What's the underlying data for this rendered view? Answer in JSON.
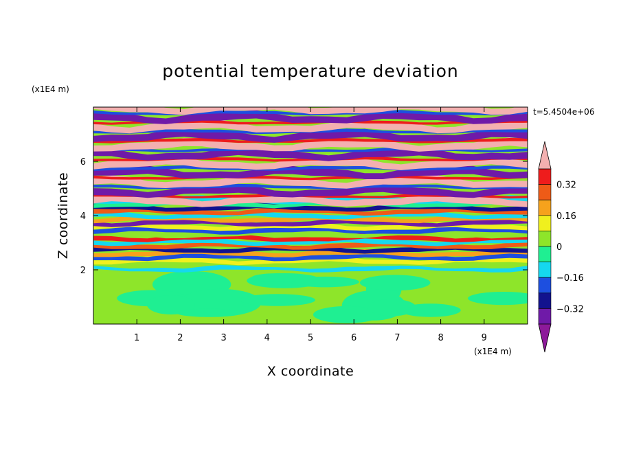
{
  "chart_data": {
    "type": "heatmap",
    "title": "potential temperature deviation",
    "xlabel": "X coordinate",
    "ylabel": "Z coordinate",
    "x_unit": "(x1E4 m)",
    "y_unit": "(x1E4 m)",
    "time_label": "t=5.4504e+06",
    "xlim": [
      0,
      10
    ],
    "ylim": [
      0,
      8
    ],
    "x_ticks": [
      1,
      2,
      3,
      4,
      5,
      6,
      7,
      8,
      9
    ],
    "x_tick_labels": [
      "1",
      "2",
      "3",
      "4",
      "5",
      "6",
      "7",
      "8",
      "9"
    ],
    "y_ticks": [
      2,
      4,
      6
    ],
    "y_tick_labels": [
      "2",
      "4",
      "6"
    ],
    "colorbar": {
      "levels": [
        -0.4,
        -0.32,
        -0.24,
        -0.16,
        -0.08,
        0,
        0.08,
        0.16,
        0.24,
        0.32,
        0.4
      ],
      "colors": [
        "#8d1a9a",
        "#6f1aa8",
        "#12128e",
        "#1d4fe0",
        "#15d8ef",
        "#1fef92",
        "#8ee52a",
        "#f0f01e",
        "#f6a21c",
        "#ee5b17",
        "#ee1c1c",
        "#f3b0b0"
      ],
      "labels": [
        "0.32",
        "0.16",
        "0",
        "−0.16",
        "−0.32"
      ],
      "label_values": [
        0.32,
        0.16,
        0,
        -0.16,
        -0.32
      ],
      "extend": "both"
    },
    "regions": {
      "lower_layer": {
        "z_range": [
          0,
          2.0
        ],
        "dominant_values": [
          0,
          0.08
        ]
      },
      "transition_layer": {
        "z_range": [
          2.0,
          4.5
        ],
        "value_range": [
          -0.4,
          0.4
        ]
      },
      "upper_layer": {
        "z_range": [
          4.5,
          8.0
        ],
        "dominant_values": [
          -0.4,
          0.4
        ],
        "pattern": "alternating horizontal bands"
      }
    },
    "grid": false
  }
}
